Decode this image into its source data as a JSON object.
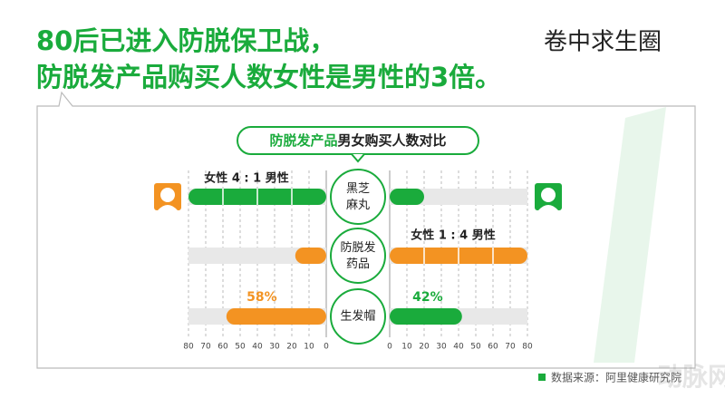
{
  "brand": "卷中求生圈",
  "title_lines": [
    "80后已进入防脱保卫战，",
    "防脱发产品购买人数女性是男性的3倍。"
  ],
  "source": "数据来源：阿里健康研究院",
  "watermark": "动脉网",
  "chart_data": {
    "type": "butterfly-bar",
    "title_parts": [
      "防脱发产品",
      "男女购买人数对比"
    ],
    "categories": [
      "黑芝麻丸",
      "防脱发药品",
      "生发帽"
    ],
    "annotations": [
      "女性 4 : 1 男性",
      "女性 1 : 4 男性"
    ],
    "series": [
      {
        "values": [
          80,
          18,
          58
        ],
        "colors": [
          "#1aab3c",
          "#f39322",
          "#f39322"
        ],
        "value_labels": [
          null,
          null,
          "58%"
        ]
      },
      {
        "values": [
          20,
          80,
          42
        ],
        "colors": [
          "#1aab3c",
          "#f39322",
          "#1aab3c"
        ],
        "value_labels": [
          null,
          null,
          "42%"
        ]
      }
    ],
    "xlim": [
      0,
      80
    ],
    "xticks": [
      0,
      10,
      20,
      30,
      40,
      50,
      60,
      70,
      80
    ],
    "grid": true
  }
}
